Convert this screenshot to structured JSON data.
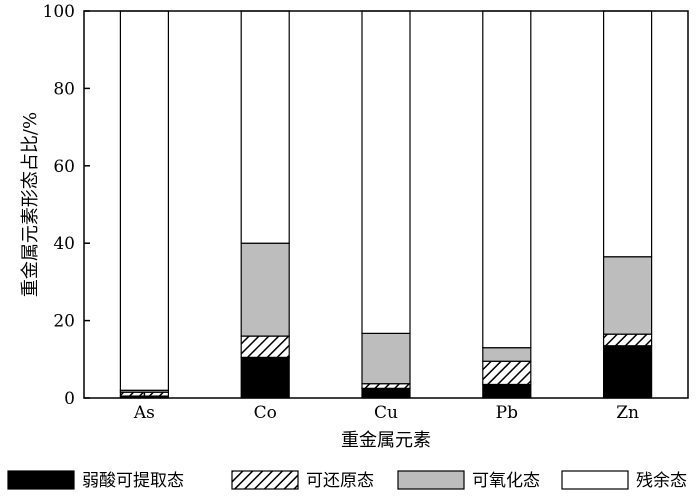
{
  "chart_data": {
    "type": "bar",
    "stacked": true,
    "categories": [
      "As",
      "Co",
      "Cu",
      "Pb",
      "Zn"
    ],
    "series": [
      {
        "name": "弱酸可提取态",
        "pattern": "solid-black",
        "values": [
          0.5,
          10.5,
          2.5,
          3.5,
          13.5
        ]
      },
      {
        "name": "可还原态",
        "pattern": "diagonal-hatch",
        "values": [
          1.0,
          5.5,
          1.2,
          6.0,
          3.0
        ]
      },
      {
        "name": "可氧化态",
        "pattern": "solid-gray",
        "values": [
          0.5,
          24.0,
          13.0,
          3.5,
          20.0
        ]
      },
      {
        "name": "残余态",
        "pattern": "white",
        "values": [
          98.0,
          60.0,
          83.3,
          87.0,
          63.5
        ]
      }
    ],
    "xlabel": "重金属元素",
    "ylabel": "重金属元素形态占比/%",
    "ylim": [
      0,
      100
    ],
    "yticks": [
      0,
      20,
      40,
      60,
      80,
      100
    ],
    "grid": false,
    "legend_position": "bottom",
    "colors": {
      "solid-black": "#000000",
      "diagonal-hatch": "#ffffff",
      "solid-gray": "#bdbdbd",
      "white": "#ffffff"
    }
  }
}
